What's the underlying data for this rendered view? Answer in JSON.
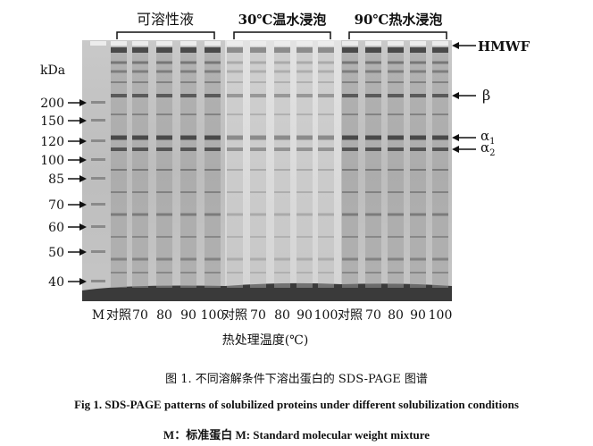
{
  "figure": {
    "group_labels": [
      "可溶性液",
      "30℃温水浸泡",
      "90℃热水浸泡"
    ],
    "axis_unit": "kDa",
    "marker_weights": [
      "200",
      "150",
      "120",
      "100",
      "85",
      "70",
      "60",
      "50",
      "40"
    ],
    "lane_labels": [
      "M",
      "对照",
      "70",
      "80",
      "90",
      "100",
      "对照",
      "70",
      "80",
      "90",
      "100",
      "对照",
      "70",
      "80",
      "90",
      "100"
    ],
    "band_labels": {
      "hmwf": "HMWF",
      "beta": "β",
      "alpha1": "α",
      "alpha1_sub": "1",
      "alpha2": "α",
      "alpha2_sub": "2"
    },
    "x_title": "热处理温度(℃)"
  },
  "captions": {
    "chinese": "图 1. 不同溶解条件下溶出蛋白的 SDS-PAGE 图谱",
    "english": "Fig 1. SDS-PAGE patterns of solubilized proteins under different solubilization conditions",
    "marker_note": "M：标准蛋白  M: Standard molecular weight mixture"
  }
}
